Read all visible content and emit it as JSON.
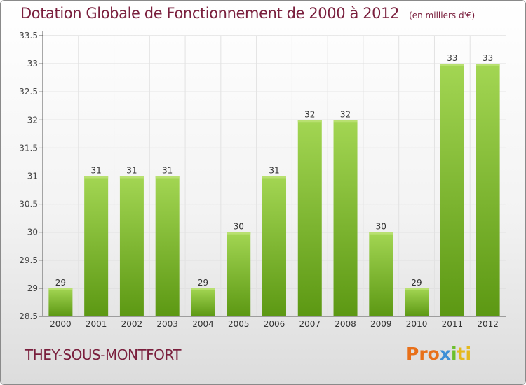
{
  "title": "Dotation Globale de Fonctionnement de 2000 à 2012",
  "subtitle": "(en milliers d'€)",
  "commune": "THEY-SOUS-MONTFORT",
  "logo": {
    "part1": "Pro",
    "part2": "x",
    "part3": "i",
    "part4": "ti"
  },
  "colors": {
    "title": "#7a1f3d",
    "bar_light": "#9ed14a",
    "bar_dark": "#5e9a14",
    "grid": "#d6d6d6"
  },
  "chart_data": {
    "type": "bar",
    "title": "Dotation Globale de Fonctionnement de 2000 à 2012",
    "subtitle": "(en milliers d'€)",
    "categories": [
      "2000",
      "2001",
      "2002",
      "2003",
      "2004",
      "2005",
      "2006",
      "2007",
      "2008",
      "2009",
      "2010",
      "2011",
      "2012"
    ],
    "values": [
      29,
      31,
      31,
      31,
      29,
      30,
      31,
      32,
      32,
      30,
      29,
      33,
      33
    ],
    "ylim": [
      28.5,
      33.5
    ],
    "yticks": [
      "28.5",
      "29",
      "29.5",
      "30",
      "30.5",
      "31",
      "31.5",
      "32",
      "32.5",
      "33",
      "33.5"
    ],
    "xlabel": "",
    "ylabel": "",
    "grid": true
  }
}
